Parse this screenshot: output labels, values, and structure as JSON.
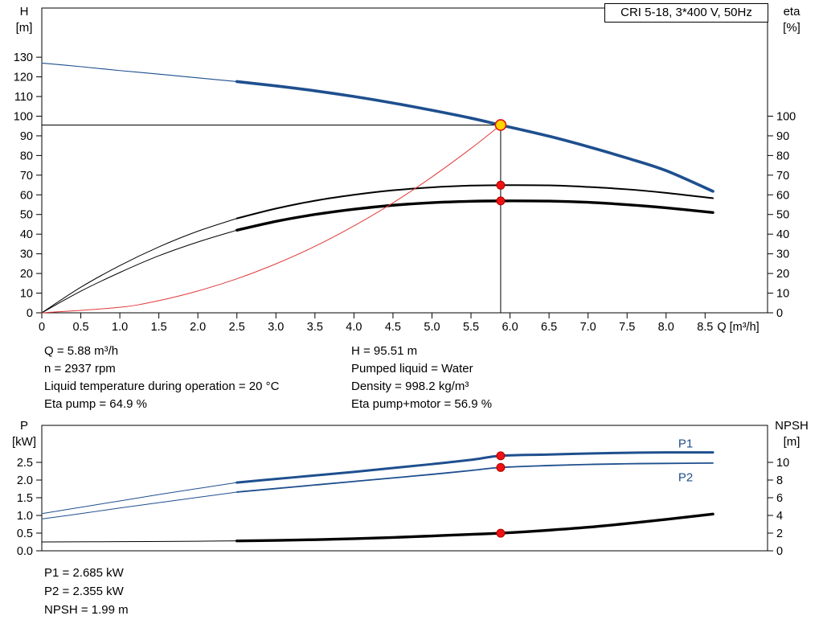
{
  "title_box": "CRI 5-18, 3*400 V, 50Hz",
  "colors": {
    "blue": "#1e4f8e",
    "black": "#000000",
    "red": "#e03a3a"
  },
  "marker_styles": {
    "duty": {
      "r": 6.5,
      "fill": "#ffd500",
      "stroke": "#e01313",
      "sw": 1.6
    },
    "dot": {
      "r": 5,
      "fill": "#ee1312",
      "stroke": "#b40000",
      "sw": 1
    }
  },
  "axis_corner_labels": {
    "h": [
      "H",
      "[m]"
    ],
    "eta": [
      "eta",
      "[%]"
    ],
    "p": [
      "P",
      "[kW]"
    ],
    "npsh": [
      "NPSH",
      "[m]"
    ]
  },
  "annotations": {
    "left": [
      "Q = 5.88 m³/h",
      "n = 2937 rpm",
      "Liquid temperature during operation = 20 °C",
      "Eta pump = 64.9 %"
    ],
    "right": [
      "H = 95.51 m",
      "Pumped liquid = Water",
      "Density = 998.2 kg/m³",
      "Eta pump+motor = 56.9 %"
    ],
    "power": [
      "P1 = 2.685 kW",
      "P2 = 2.355 kW",
      "NPSH = 1.99 m"
    ]
  },
  "chart_data": [
    {
      "type": "line",
      "title": "CRI 5-18, 3*400 V, 50Hz — QH and efficiency curves",
      "x_axis": {
        "label": "Q [m³/h]",
        "min": 0,
        "max": 9.3,
        "ticks": [
          0,
          0.5,
          1,
          1.5,
          2,
          2.5,
          3,
          3.5,
          4,
          4.5,
          5,
          5.5,
          6,
          6.5,
          7,
          7.5,
          8,
          8.5
        ],
        "tick_labels": [
          "0",
          "0.5",
          "1.0",
          "1.5",
          "2.0",
          "2.5",
          "3.0",
          "3.5",
          "4.0",
          "4.5",
          "5.0",
          "5.5",
          "6.0",
          "6.5",
          "7.0",
          "7.5",
          "8.0",
          "8.5"
        ]
      },
      "y_left": {
        "label": "H [m]",
        "min": 0,
        "max": 155,
        "ticks": [
          0,
          10,
          20,
          30,
          40,
          50,
          60,
          70,
          80,
          90,
          100,
          110,
          120,
          130
        ],
        "tick_labels": [
          "0",
          "10",
          "20",
          "30",
          "40",
          "50",
          "60",
          "70",
          "80",
          "90",
          "100",
          "110",
          "120",
          "130"
        ]
      },
      "y_right": {
        "label": "eta [%]",
        "min": 0,
        "max": 155,
        "ticks": [
          0,
          10,
          20,
          30,
          40,
          50,
          60,
          70,
          80,
          90,
          100
        ],
        "tick_labels": [
          "0",
          "10",
          "20",
          "30",
          "40",
          "50",
          "60",
          "70",
          "80",
          "90",
          "100"
        ]
      },
      "duty_point": {
        "Q": 5.88,
        "H": 95.51
      },
      "series": [
        {
          "name": "qh-curve-extension",
          "axis": "left",
          "color": "blue",
          "width": 1.1,
          "points": [
            [
              0,
              127
            ],
            [
              0.5,
              125.2
            ],
            [
              1,
              123.2
            ],
            [
              1.5,
              121.4
            ],
            [
              2,
              119.5
            ],
            [
              2.5,
              117.6
            ]
          ]
        },
        {
          "name": "qh-curve",
          "axis": "left",
          "color": "blue",
          "width": 3.6,
          "points": [
            [
              2.5,
              117.6
            ],
            [
              3,
              115.4
            ],
            [
              3.5,
              112.9
            ],
            [
              4,
              110
            ],
            [
              4.5,
              106.7
            ],
            [
              5,
              103
            ],
            [
              5.5,
              99
            ],
            [
              5.88,
              95.51
            ],
            [
              6.5,
              89.8
            ],
            [
              7,
              84.5
            ],
            [
              7.5,
              78.7
            ],
            [
              8,
              72.3
            ],
            [
              8.6,
              61.8
            ]
          ]
        },
        {
          "name": "eta-pump-curve-extension",
          "axis": "right",
          "color": "black",
          "width": 1,
          "points": [
            [
              0,
              0
            ],
            [
              0.5,
              13
            ],
            [
              1,
              24
            ],
            [
              1.5,
              33.5
            ],
            [
              2,
              41.5
            ],
            [
              2.5,
              48
            ]
          ]
        },
        {
          "name": "eta-pump-curve",
          "axis": "right",
          "color": "black",
          "width": 2,
          "points": [
            [
              2.5,
              48
            ],
            [
              3,
              53
            ],
            [
              3.5,
              57
            ],
            [
              4,
              60
            ],
            [
              4.5,
              62.3
            ],
            [
              5,
              63.8
            ],
            [
              5.5,
              64.7
            ],
            [
              5.88,
              64.9
            ],
            [
              6.5,
              64.8
            ],
            [
              7,
              64
            ],
            [
              7.5,
              62.8
            ],
            [
              8,
              61
            ],
            [
              8.6,
              58.3
            ]
          ]
        },
        {
          "name": "eta-pump-motor-curve-extension",
          "axis": "right",
          "color": "black",
          "width": 1,
          "points": [
            [
              0,
              0
            ],
            [
              0.5,
              11
            ],
            [
              1,
              20.5
            ],
            [
              1.5,
              29
            ],
            [
              2,
              36
            ],
            [
              2.5,
              42
            ]
          ]
        },
        {
          "name": "eta-pump-motor-curve",
          "axis": "right",
          "color": "black",
          "width": 3.4,
          "points": [
            [
              2.5,
              42
            ],
            [
              3,
              46.5
            ],
            [
              3.5,
              50
            ],
            [
              4,
              52.7
            ],
            [
              4.5,
              54.7
            ],
            [
              5,
              56
            ],
            [
              5.5,
              56.7
            ],
            [
              5.88,
              56.9
            ],
            [
              6.5,
              56.8
            ],
            [
              7,
              56.2
            ],
            [
              7.5,
              55
            ],
            [
              8,
              53.4
            ],
            [
              8.6,
              51
            ]
          ]
        },
        {
          "name": "system-curve",
          "axis": "left",
          "color": "red",
          "width": 1,
          "points": [
            [
              0,
              0
            ],
            [
              1,
              2.8
            ],
            [
              1.5,
              6.2
            ],
            [
              2,
              11.1
            ],
            [
              2.5,
              17.3
            ],
            [
              3,
              24.9
            ],
            [
              3.5,
              33.8
            ],
            [
              4,
              44.2
            ],
            [
              4.5,
              55.9
            ],
            [
              5,
              69.1
            ],
            [
              5.5,
              83.6
            ],
            [
              5.88,
              95.51
            ]
          ]
        }
      ],
      "curve_labels": [],
      "markers": [
        {
          "name": "eta-pump-point",
          "q": 5.88,
          "value": 64.9,
          "axis": "right",
          "style": "dot"
        },
        {
          "name": "eta-pump-motor-point",
          "q": 5.88,
          "value": 56.9,
          "axis": "right",
          "style": "dot"
        },
        {
          "name": "duty-point",
          "q": 5.88,
          "value": 95.51,
          "axis": "left",
          "style": "duty"
        }
      ]
    },
    {
      "type": "line",
      "title": "Power and NPSH curves",
      "x_axis": {
        "label": "",
        "min": 0,
        "max": 9.3,
        "ticks": [],
        "tick_labels": []
      },
      "y_left": {
        "label": "P [kW]",
        "min": 0,
        "max": 3.545,
        "ticks": [
          0,
          0.5,
          1,
          1.5,
          2,
          2.5
        ],
        "tick_labels": [
          "0.0",
          "0.5",
          "1.0",
          "1.5",
          "2.0",
          "2.5"
        ]
      },
      "y_right": {
        "label": "NPSH [m]",
        "min": 0,
        "max": 14.18,
        "ticks": [
          0,
          2,
          4,
          6,
          8,
          10
        ],
        "tick_labels": [
          "0",
          "2",
          "4",
          "6",
          "8",
          "10"
        ]
      },
      "series": [
        {
          "name": "p1-curve-extension",
          "axis": "left",
          "color": "blue",
          "width": 1,
          "points": [
            [
              0,
              1.05
            ],
            [
              0.5,
              1.23
            ],
            [
              1,
              1.41
            ],
            [
              1.5,
              1.59
            ],
            [
              2,
              1.76
            ],
            [
              2.5,
              1.93
            ]
          ]
        },
        {
          "name": "p1-curve",
          "axis": "left",
          "color": "blue",
          "width": 3,
          "points": [
            [
              2.5,
              1.93
            ],
            [
              3,
              2.03
            ],
            [
              3.5,
              2.13
            ],
            [
              4,
              2.23
            ],
            [
              4.5,
              2.34
            ],
            [
              5,
              2.45
            ],
            [
              5.5,
              2.57
            ],
            [
              5.88,
              2.685
            ],
            [
              6.5,
              2.72
            ],
            [
              7,
              2.75
            ],
            [
              7.5,
              2.77
            ],
            [
              8,
              2.78
            ],
            [
              8.6,
              2.78
            ]
          ]
        },
        {
          "name": "p2-curve-extension",
          "axis": "left",
          "color": "blue",
          "width": 1,
          "points": [
            [
              0,
              0.9
            ],
            [
              0.5,
              1.05
            ],
            [
              1,
              1.21
            ],
            [
              1.5,
              1.36
            ],
            [
              2,
              1.51
            ],
            [
              2.5,
              1.66
            ]
          ]
        },
        {
          "name": "p2-curve",
          "axis": "left",
          "color": "blue",
          "width": 1.8,
          "points": [
            [
              2.5,
              1.66
            ],
            [
              3,
              1.76
            ],
            [
              3.5,
              1.86
            ],
            [
              4,
              1.96
            ],
            [
              4.5,
              2.06
            ],
            [
              5,
              2.16
            ],
            [
              5.5,
              2.27
            ],
            [
              5.88,
              2.355
            ],
            [
              6.5,
              2.41
            ],
            [
              7,
              2.44
            ],
            [
              7.5,
              2.46
            ],
            [
              8,
              2.47
            ],
            [
              8.6,
              2.48
            ]
          ]
        },
        {
          "name": "npsh-curve-extension",
          "axis": "right",
          "color": "black",
          "width": 1,
          "points": [
            [
              0,
              1.0
            ],
            [
              1,
              1.03
            ],
            [
              2,
              1.08
            ],
            [
              2.5,
              1.12
            ]
          ]
        },
        {
          "name": "npsh-curve",
          "axis": "right",
          "color": "black",
          "width": 3.4,
          "points": [
            [
              2.5,
              1.12
            ],
            [
              3,
              1.18
            ],
            [
              3.5,
              1.26
            ],
            [
              4,
              1.37
            ],
            [
              4.5,
              1.51
            ],
            [
              5,
              1.68
            ],
            [
              5.5,
              1.86
            ],
            [
              5.88,
              1.99
            ],
            [
              6.5,
              2.33
            ],
            [
              7,
              2.66
            ],
            [
              7.5,
              3.08
            ],
            [
              8,
              3.55
            ],
            [
              8.6,
              4.15
            ]
          ]
        }
      ],
      "curve_labels": [
        {
          "text": "P1",
          "q": 8.25,
          "value": 2.92,
          "axis": "left",
          "color": "blue"
        },
        {
          "text": "P2",
          "q": 8.25,
          "value": 1.97,
          "axis": "left",
          "color": "blue"
        }
      ],
      "markers": [
        {
          "name": "p1-point",
          "q": 5.88,
          "value": 2.685,
          "axis": "left",
          "style": "dot"
        },
        {
          "name": "p2-point",
          "q": 5.88,
          "value": 2.355,
          "axis": "left",
          "style": "dot"
        },
        {
          "name": "npsh-point",
          "q": 5.88,
          "value": 1.99,
          "axis": "right",
          "style": "dot"
        }
      ]
    }
  ]
}
